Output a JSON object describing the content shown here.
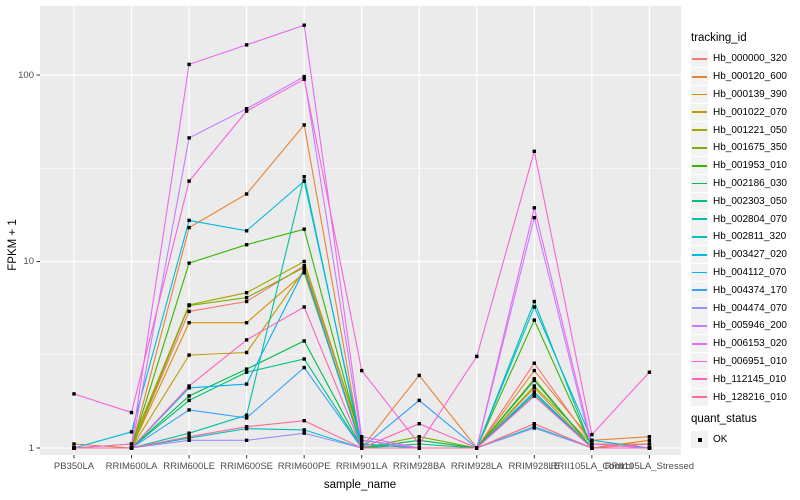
{
  "panel": {
    "bg": "#EBEBEB",
    "grid": "#FFFFFF"
  },
  "legend": {
    "tracking_title": "tracking_id",
    "quant_title": "quant_status",
    "quant_items": [
      {
        "label": "OK"
      }
    ]
  },
  "chart_data": {
    "type": "line",
    "title": "",
    "xlabel": "sample_name",
    "ylabel": "FPKM + 1",
    "y_scale": "log10",
    "ylim": [
      0.93,
      235
    ],
    "grid": "on",
    "legend_position": "right",
    "y_ticks": [
      {
        "value": 1,
        "label": "1"
      },
      {
        "value": 10,
        "label": "10"
      },
      {
        "value": 100,
        "label": "100"
      }
    ],
    "y_minor": [
      3.162,
      31.62
    ],
    "marker": {
      "shape": "filled-square",
      "color": "#000000",
      "status_label": "OK"
    },
    "categories": [
      "PB350LA",
      "RRIM600LA",
      "RRIM600LE",
      "RRIM600SE",
      "RRIM600PE",
      "RRIM901LA",
      "RRIM928BA",
      "RRIM928LA",
      "RRIM928LE",
      "RRII105LA_Control",
      "RRII105LA_Stressed"
    ],
    "series": [
      {
        "name": "Hb_000000_320",
        "color": "#F8766D",
        "values": [
          1.0,
          1.0,
          5.4,
          6.1,
          9.5,
          1.1,
          1.0,
          1.0,
          2.85,
          1.05,
          1.05
        ]
      },
      {
        "name": "Hb_000120_600",
        "color": "#EA8331",
        "values": [
          1.05,
          1.0,
          15.2,
          23,
          54,
          1.0,
          2.45,
          1.0,
          2.6,
          1.1,
          1.15
        ]
      },
      {
        "name": "Hb_000139_390",
        "color": "#D89000",
        "values": [
          1.0,
          1.0,
          4.7,
          4.7,
          8.7,
          1.05,
          1.0,
          1.0,
          2.1,
          1.0,
          1.1
        ]
      },
      {
        "name": "Hb_001022_070",
        "color": "#C09B00",
        "values": [
          1.0,
          1.0,
          3.15,
          3.25,
          9.0,
          1.0,
          1.0,
          1.0,
          1.35,
          1.0,
          1.0
        ]
      },
      {
        "name": "Hb_001221_050",
        "color": "#A3A500",
        "values": [
          1.0,
          1.05,
          5.85,
          6.8,
          10.0,
          1.1,
          1.0,
          1.0,
          2.15,
          1.05,
          1.0
        ]
      },
      {
        "name": "Hb_001675_350",
        "color": "#7CAE00",
        "values": [
          1.0,
          1.0,
          5.8,
          6.4,
          9.3,
          1.0,
          1.15,
          1.0,
          2.35,
          1.0,
          1.0
        ]
      },
      {
        "name": "Hb_001953_010",
        "color": "#39B600",
        "values": [
          1.0,
          1.0,
          9.8,
          12.3,
          14.9,
          1.05,
          1.0,
          1.0,
          4.85,
          1.0,
          1.0
        ]
      },
      {
        "name": "Hb_002186_030",
        "color": "#00BB4E",
        "values": [
          1.0,
          1.0,
          1.9,
          2.65,
          3.75,
          1.0,
          1.1,
          1.0,
          2.3,
          1.0,
          1.0
        ]
      },
      {
        "name": "Hb_002303_050",
        "color": "#00BF7D",
        "values": [
          1.0,
          1.0,
          1.8,
          2.55,
          3.0,
          1.0,
          1.05,
          1.0,
          1.95,
          1.0,
          1.0
        ]
      },
      {
        "name": "Hb_002804_070",
        "color": "#00C1A3",
        "values": [
          1.0,
          1.0,
          1.2,
          1.5,
          28.5,
          1.0,
          1.0,
          1.0,
          6.1,
          1.0,
          1.0
        ]
      },
      {
        "name": "Hb_002811_320",
        "color": "#00BFC4",
        "values": [
          1.0,
          1.0,
          1.13,
          1.27,
          1.25,
          1.0,
          1.0,
          1.0,
          1.3,
          1.0,
          1.0
        ]
      },
      {
        "name": "Hb_003427_020",
        "color": "#00BAE0",
        "values": [
          1.0,
          1.22,
          16.6,
          14.6,
          27.0,
          1.05,
          1.0,
          1.0,
          5.7,
          1.1,
          1.0
        ]
      },
      {
        "name": "Hb_004112_070",
        "color": "#00B0F6",
        "values": [
          1.0,
          1.0,
          2.1,
          2.2,
          9.0,
          1.0,
          1.0,
          1.0,
          2.0,
          1.0,
          1.0
        ]
      },
      {
        "name": "Hb_004374_170",
        "color": "#35A2FF",
        "values": [
          1.0,
          1.0,
          1.6,
          1.45,
          2.7,
          1.0,
          1.8,
          1.0,
          1.9,
          1.0,
          1.0
        ]
      },
      {
        "name": "Hb_004474_070",
        "color": "#9590FF",
        "values": [
          1.0,
          1.0,
          1.1,
          1.1,
          1.2,
          1.0,
          1.0,
          1.0,
          1.28,
          1.0,
          1.0
        ]
      },
      {
        "name": "Hb_005946_200",
        "color": "#C77CFF",
        "values": [
          1.0,
          1.0,
          46,
          66,
          98,
          1.1,
          1.0,
          1.0,
          17.2,
          1.0,
          1.0
        ]
      },
      {
        "name": "Hb_006153_020",
        "color": "#E76BF3",
        "values": [
          1.0,
          1.05,
          114,
          145,
          185,
          1.15,
          1.0,
          1.0,
          19.4,
          1.05,
          1.0
        ]
      },
      {
        "name": "Hb_006951_010",
        "color": "#FA62DB",
        "values": [
          1.95,
          1.55,
          27,
          64,
          95,
          2.6,
          1.05,
          3.1,
          39,
          1.18,
          2.55
        ]
      },
      {
        "name": "Hb_112145_010",
        "color": "#FF62BC",
        "values": [
          1.0,
          1.0,
          2.15,
          3.8,
          5.7,
          1.0,
          1.35,
          1.0,
          1.9,
          1.0,
          1.0
        ]
      },
      {
        "name": "Hb_128216_010",
        "color": "#FF6A98",
        "values": [
          1.0,
          1.0,
          1.15,
          1.3,
          1.4,
          1.0,
          1.0,
          1.0,
          1.35,
          1.0,
          1.05
        ]
      }
    ]
  }
}
